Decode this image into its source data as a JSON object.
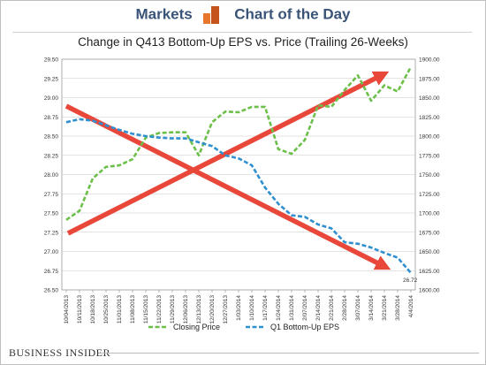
{
  "header": {
    "markets": "Markets",
    "chart_of_the_day": "Chart of the Day"
  },
  "footer": {
    "brand": "BUSINESS INSIDER"
  },
  "colors": {
    "closing_price": "#6cc04a",
    "eps": "#2f8fcf",
    "arrow": "#e8473a",
    "brand_blue": "#3a5378",
    "logo_orange": "#e8772e"
  },
  "chart_data": {
    "type": "line",
    "title": "Change in Q413 Bottom-Up EPS vs. Price (Trailing 26-Weeks)",
    "xlabel": "",
    "ylabel": "",
    "ylim": [
      26.5,
      29.5
    ],
    "y2lim": [
      1600,
      1900
    ],
    "yticks": [
      "29.50",
      "29.25",
      "29.00",
      "28.75",
      "28.50",
      "28.25",
      "28.00",
      "27.75",
      "27.50",
      "27.25",
      "27.00",
      "26.75",
      "26.50"
    ],
    "y2ticks": [
      "1900.00",
      "1875.00",
      "1850.00",
      "1825.00",
      "1800.00",
      "1775.00",
      "1750.00",
      "1725.00",
      "1700.00",
      "1675.00",
      "1650.00",
      "1625.00",
      "1600.00"
    ],
    "categories": [
      "10/04/2013",
      "10/11/2013",
      "10/18/2013",
      "10/25/2013",
      "11/01/2013",
      "11/08/2013",
      "11/15/2013",
      "11/22/2013",
      "11/29/2013",
      "12/06/2013",
      "12/13/2013",
      "12/20/2013",
      "12/27/2013",
      "1/03/2014",
      "1/10/2014",
      "1/17/2014",
      "1/24/2014",
      "1/31/2014",
      "2/07/2014",
      "2/14/2014",
      "2/21/2014",
      "2/28/2014",
      "3/07/2014",
      "3/14/2014",
      "3/21/2014",
      "3/28/2014",
      "4/4/2014"
    ],
    "grid": true,
    "legend": "bottom",
    "series": [
      {
        "name": "Closing Price",
        "axis": "right",
        "values": [
          1691,
          1703,
          1745,
          1760,
          1762,
          1770,
          1798,
          1804,
          1805,
          1805,
          1775,
          1818,
          1832,
          1831,
          1838,
          1838,
          1783,
          1777,
          1795,
          1840,
          1838,
          1860,
          1879,
          1846,
          1866,
          1858,
          1890
        ]
      },
      {
        "name": "Q1 Bottom-Up EPS",
        "axis": "left",
        "values": [
          28.68,
          28.72,
          28.7,
          28.64,
          28.58,
          28.53,
          28.5,
          28.48,
          28.47,
          28.47,
          28.42,
          28.37,
          28.25,
          28.21,
          28.12,
          27.83,
          27.62,
          27.47,
          27.45,
          27.35,
          27.3,
          27.12,
          27.1,
          27.05,
          26.98,
          26.92,
          26.72
        ]
      }
    ],
    "annotations": [
      {
        "text": "26.72",
        "series": "Q1 Bottom-Up EPS",
        "index": 26
      },
      {
        "type": "arrow",
        "direction": "down",
        "description_words": "red arrow"
      },
      {
        "type": "arrow",
        "direction": "up",
        "description_words": "red arrow"
      }
    ]
  }
}
